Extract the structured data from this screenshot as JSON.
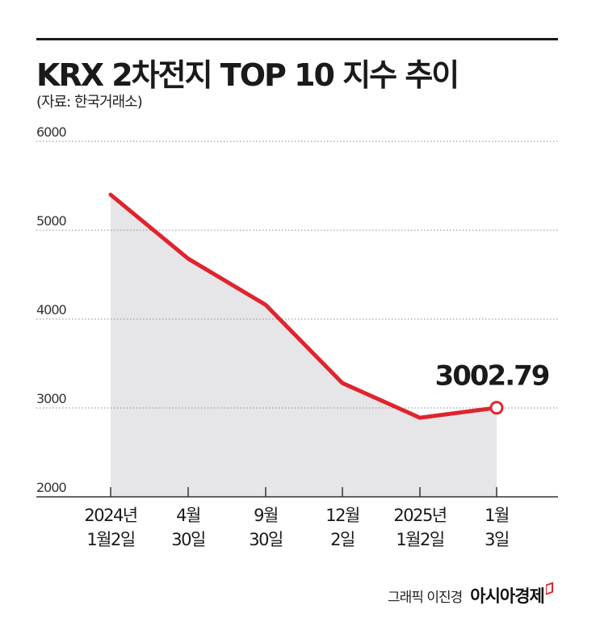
{
  "header": {
    "title": "KRX 2차전지 TOP 10 지수 추이",
    "source": "(자료: 한국거래소)"
  },
  "chart_data": {
    "type": "line",
    "title": "KRX 2차전지 TOP 10 지수 추이",
    "xlabel": "",
    "ylabel": "",
    "ylim": [
      2000,
      6000
    ],
    "yticks": [
      "6000",
      "5000",
      "4000",
      "3000",
      "2000"
    ],
    "grid": true,
    "legend": "none",
    "categories": [
      [
        "2024년",
        "1월2일"
      ],
      [
        "4월",
        "30일"
      ],
      [
        "9월",
        "30일"
      ],
      [
        "12월",
        "2일"
      ],
      [
        "2025년",
        "1월2일"
      ],
      [
        "1월",
        "3일"
      ]
    ],
    "series": [
      {
        "name": "",
        "values": [
          5400,
          4680,
          4160,
          3280,
          2890,
          3002.79
        ]
      }
    ],
    "annotations": [
      {
        "label": "3002.79",
        "point_index": 5
      }
    ],
    "colors": {
      "line": "#e0242e",
      "area": "#e6e6e9",
      "grid": "#8a8a8a",
      "axis": "#333333"
    }
  },
  "footer": {
    "credit": "그래픽 이진경",
    "brand": "아시아경제"
  }
}
